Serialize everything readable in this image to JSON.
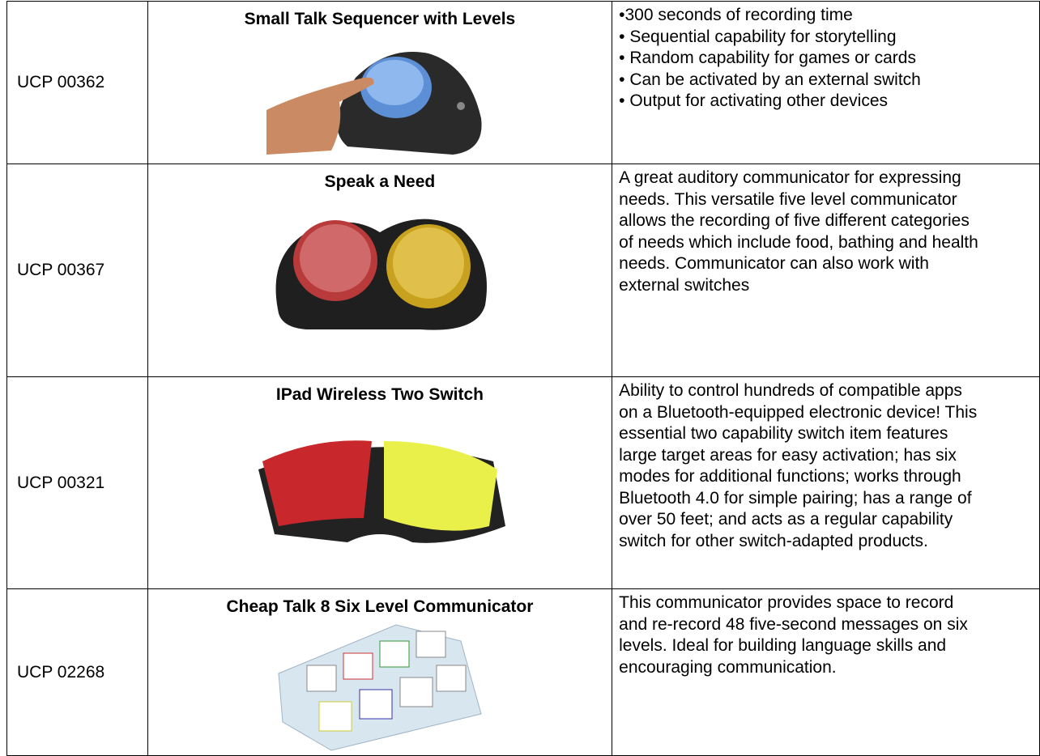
{
  "table": {
    "rows": [
      {
        "id": "UCP 00362",
        "title": "Small Talk Sequencer with Levels",
        "lines": [
          "•300 seconds of recording time",
          "• Sequential capability for storytelling",
          "• Random capability for games or cards",
          "• Can be activated by an external switch",
          "• Output for activating other devices"
        ]
      },
      {
        "id": "UCP 00367",
        "title": "Speak a Need",
        "lines": [
          "A great auditory communicator for expressing",
          "needs. This versatile five level communicator",
          "allows the recording of five different categories",
          "of needs which include food, bathing and health",
          "needs. Communicator can also work with",
          "external switches"
        ]
      },
      {
        "id": "UCP 00321",
        "title": "IPad Wireless Two Switch",
        "lines": [
          "Ability to control hundreds of compatible apps",
          "on a Bluetooth-equipped electronic device! This",
          "essential two capability switch item features",
          "large target areas for easy activation; has six",
          "modes for additional functions; works through",
          "Bluetooth 4.0 for simple pairing; has a range of",
          "over 50 feet; and acts as a regular capability",
          "switch for other switch-adapted products."
        ]
      },
      {
        "id": "UCP 02268",
        "title": "Cheap Talk 8 Six Level Communicator",
        "lines": [
          "This communicator provides space to record",
          "and re-record 48 five-second messages on six",
          "levels. Ideal for building language skills and",
          "encouraging communication."
        ]
      }
    ]
  }
}
